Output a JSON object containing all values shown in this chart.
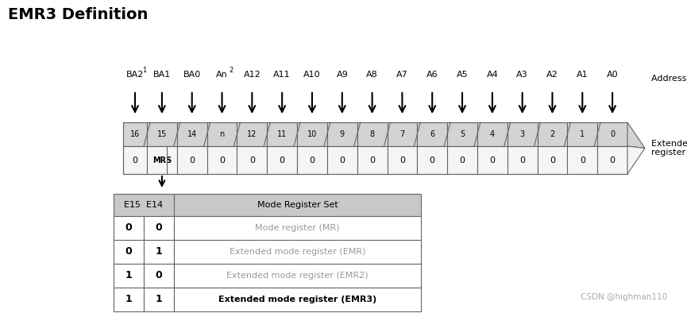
{
  "title": "EMR3 Definition",
  "bg_color": "#ffffff",
  "address_bus_label": "Address bus",
  "extended_mode_label": "Extended mode\nregister (Ex)",
  "address_labels": [
    "BA2",
    "BA1",
    "BA0",
    "An",
    "A12",
    "A11",
    "A10",
    "A9",
    "A8",
    "A7",
    "A6",
    "A5",
    "A4",
    "A3",
    "A2",
    "A1",
    "A0"
  ],
  "address_superscripts": [
    "1",
    "",
    "",
    "2",
    "",
    "",
    "",
    "",
    "",
    "",
    "",
    "",
    "",
    "",
    "",
    "",
    ""
  ],
  "top_row_labels": [
    "16",
    "15",
    "14",
    "n",
    "12",
    "11",
    "10",
    "9",
    "8",
    "7",
    "6",
    "5",
    "4",
    "3",
    "2",
    "1",
    "0"
  ],
  "bottom_row_labels": [
    "0",
    "MRS",
    "0",
    "0",
    "0",
    "0",
    "0",
    "0",
    "0",
    "0",
    "0",
    "0",
    "0",
    "0",
    "0",
    "0",
    "0"
  ],
  "table_headers": [
    "E15  E14",
    "Mode Register Set"
  ],
  "table_rows": [
    [
      "0",
      "0",
      "Mode register (MR)"
    ],
    [
      "0",
      "1",
      "Extended mode register (EMR)"
    ],
    [
      "1",
      "0",
      "Extended mode register (EMR2)"
    ],
    [
      "1",
      "1",
      "Extended mode register (EMR3)"
    ]
  ],
  "table_bold_row": 3,
  "watermark": "CSDN @highman110",
  "register_top_bg": "#d3d3d3",
  "register_bot_bg": "#f5f5f5",
  "table_header_bg": "#c8c8c8",
  "arrow_color": "#000000"
}
